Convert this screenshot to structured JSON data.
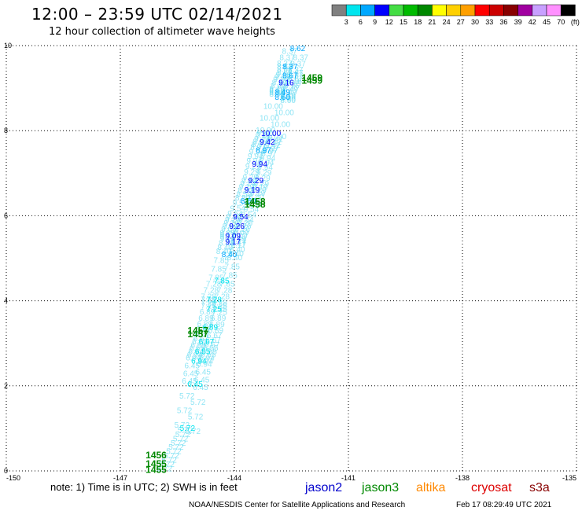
{
  "header": {
    "title": "12:00 – 23:59 UTC 02/14/2021",
    "subtitle": "12 hour collection of altimeter wave heights"
  },
  "colorbar": {
    "swatches": [
      "#808080",
      "#00e5ee",
      "#00a8ff",
      "#0000ff",
      "#44dd44",
      "#00bb00",
      "#008800",
      "#ffff00",
      "#ffd000",
      "#ffa000",
      "#ff0000",
      "#cc0000",
      "#880000",
      "#a000a0",
      "#c8a0ff",
      "#ff90ff",
      "#000000"
    ],
    "labels": [
      "3",
      "6",
      "9",
      "12",
      "15",
      "18",
      "21",
      "24",
      "27",
      "30",
      "33",
      "36",
      "39",
      "42",
      "45",
      "70",
      "(ft)"
    ]
  },
  "note": "note:  1) Time is in UTC;  2) SWH is in feet",
  "satellites": [
    {
      "name": "jason2",
      "color": "#0000cc"
    },
    {
      "name": "jason3",
      "color": "#008800"
    },
    {
      "name": "altika",
      "color": "#ff8800"
    },
    {
      "name": "cryosat",
      "color": "#dd0000"
    },
    {
      "name": "s3a",
      "color": "#880000"
    }
  ],
  "footer": {
    "credit": "NOAA/NESDIS Center for Satellite Applications and Research",
    "timestamp": "Feb 17 08:29:49 UTC 2021"
  },
  "chart_data": {
    "type": "scatter",
    "title": "12:00 – 23:59 UTC 02/14/2021",
    "subtitle": "12 hour collection of altimeter wave heights",
    "xlim": [
      -150,
      -135
    ],
    "ylim": [
      0,
      10
    ],
    "x_ticks": [
      "-150",
      "-147",
      "-144",
      "-141",
      "-138",
      "-135"
    ],
    "y_ticks": [
      "0",
      "2",
      "4",
      "6",
      "8",
      "10"
    ],
    "grid": "dotted",
    "swh_points": [
      {
        "x": -145.4,
        "y": 1.0,
        "v": "5.72",
        "c": "#00e5ee"
      },
      {
        "x": -145.2,
        "y": 2.03,
        "v": "6.45",
        "c": "#00e5ee"
      },
      {
        "x": -145.1,
        "y": 2.58,
        "v": "6.94",
        "c": "#00e5ee"
      },
      {
        "x": -145.0,
        "y": 2.8,
        "v": "6.55",
        "c": "#00e5ee"
      },
      {
        "x": -144.9,
        "y": 3.03,
        "v": "6.67",
        "c": "#00e5ee"
      },
      {
        "x": -144.8,
        "y": 3.37,
        "v": "6.89",
        "c": "#00e5ee"
      },
      {
        "x": -144.7,
        "y": 3.8,
        "v": "7.25",
        "c": "#00e5ee"
      },
      {
        "x": -144.7,
        "y": 4.02,
        "v": "7.28",
        "c": "#00e5ee"
      },
      {
        "x": -144.5,
        "y": 4.46,
        "v": "7.85",
        "c": "#00e5ee"
      },
      {
        "x": -144.3,
        "y": 5.08,
        "v": "8.40",
        "c": "#00a8ff"
      },
      {
        "x": -144.2,
        "y": 5.38,
        "v": "9.17",
        "c": "#0000ff"
      },
      {
        "x": -144.2,
        "y": 5.52,
        "v": "9.09",
        "c": "#0000ff"
      },
      {
        "x": -144.1,
        "y": 5.75,
        "v": "9.26",
        "c": "#0000ff"
      },
      {
        "x": -144.0,
        "y": 5.97,
        "v": "9.54",
        "c": "#0000ff"
      },
      {
        "x": -143.8,
        "y": 6.34,
        "v": "8.50",
        "c": "#00a8ff"
      },
      {
        "x": -143.7,
        "y": 6.6,
        "v": "9.19",
        "c": "#0000ff"
      },
      {
        "x": -143.6,
        "y": 6.82,
        "v": "9.29",
        "c": "#0000ff"
      },
      {
        "x": -143.5,
        "y": 7.21,
        "v": "9.94",
        "c": "#0000ff"
      },
      {
        "x": -143.4,
        "y": 7.53,
        "v": "8.97",
        "c": "#00a8ff"
      },
      {
        "x": -143.3,
        "y": 7.73,
        "v": "9.42",
        "c": "#0000ff"
      },
      {
        "x": -143.2,
        "y": 7.93,
        "v": "10.00",
        "c": "#0000ff"
      },
      {
        "x": -142.9,
        "y": 8.78,
        "v": "8.60",
        "c": "#00a8ff"
      },
      {
        "x": -142.9,
        "y": 8.9,
        "v": "8.49",
        "c": "#00a8ff"
      },
      {
        "x": -142.8,
        "y": 9.12,
        "v": "9.16",
        "c": "#0000ff"
      },
      {
        "x": -142.7,
        "y": 9.29,
        "v": "8.67",
        "c": "#00a8ff"
      },
      {
        "x": -142.7,
        "y": 9.5,
        "v": "8.37",
        "c": "#00a8ff"
      },
      {
        "x": -142.5,
        "y": 9.93,
        "v": "8.62",
        "c": "#00a8ff"
      }
    ],
    "time_labels": [
      {
        "x": -146.5,
        "y": 0.35,
        "v": "1456"
      },
      {
        "x": -146.5,
        "y": 0.15,
        "v": "1455"
      },
      {
        "x": -146.5,
        "y": 0.01,
        "v": "1455"
      },
      {
        "x": -145.4,
        "y": 3.28,
        "v": "1457"
      },
      {
        "x": -145.4,
        "y": 3.2,
        "v": "1457"
      },
      {
        "x": -143.9,
        "y": 6.31,
        "v": "1458"
      },
      {
        "x": -143.9,
        "y": 6.25,
        "v": "1458"
      },
      {
        "x": -142.4,
        "y": 9.22,
        "v": "1459"
      },
      {
        "x": -142.4,
        "y": 9.16,
        "v": "1459"
      }
    ]
  }
}
